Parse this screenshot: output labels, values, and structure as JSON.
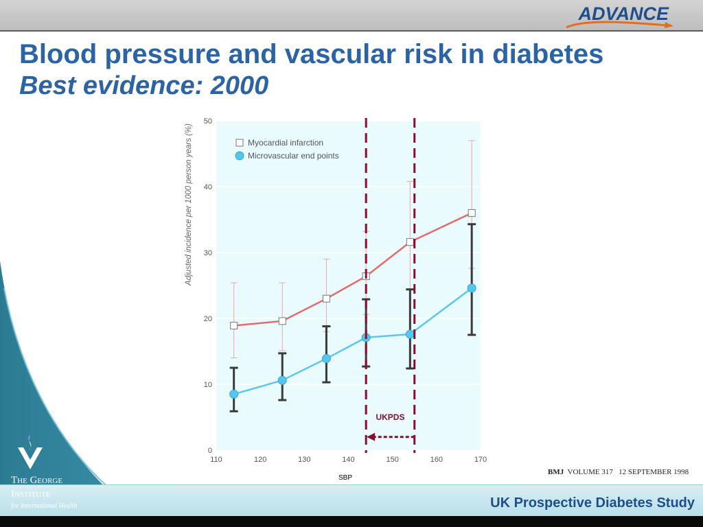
{
  "header": {
    "logo_text": "ADVANCE",
    "title": "Blood pressure and vascular risk in diabetes",
    "subtitle": "Best evidence: 2000"
  },
  "footer": {
    "text": "UK Prospective Diabetes Study",
    "institute_line1": "The George",
    "institute_line2": "Institute",
    "institute_line3": "for International Health"
  },
  "citation": {
    "journal": "BMJ",
    "volume": "VOLUME 317",
    "date": "12 SEPTEMBER 1998"
  },
  "colors": {
    "title_blue": "#2b64a4",
    "mi_line": "#e8686a",
    "micro_line": "#5ac8ee",
    "micro_fill": "#55c6ee",
    "error_dark": "#3a3a3a",
    "plot_bg": "#e9fbfd",
    "ukpds_marker": "#8b0d2e"
  },
  "chart_data": {
    "type": "line",
    "ylabel": "Adjusted incidence per 1000 person years (%)",
    "xlabel": "SBP",
    "xlim": [
      110,
      170
    ],
    "ylim": [
      0,
      50
    ],
    "x_ticks": [
      "110",
      "120",
      "130",
      "140",
      "150",
      "160",
      "170"
    ],
    "y_ticks": [
      "0",
      "10",
      "20",
      "30",
      "40",
      "50"
    ],
    "grid": "horizontal",
    "legend_position": "top-left",
    "series": [
      {
        "name": "Myocardial infarction",
        "marker": "open-square",
        "points": [
          {
            "x": 114,
            "y": 18.9,
            "lo": 14.0,
            "hi": 25.4
          },
          {
            "x": 125,
            "y": 19.6,
            "lo": 15.1,
            "hi": 25.4
          },
          {
            "x": 135,
            "y": 23.0,
            "lo": 18.0,
            "hi": 29.0
          },
          {
            "x": 144,
            "y": 26.4,
            "lo": 20.6,
            "hi": 33.2
          },
          {
            "x": 154,
            "y": 31.6,
            "lo": 24.5,
            "hi": 40.8
          },
          {
            "x": 168,
            "y": 36.0,
            "lo": 27.6,
            "hi": 47.0
          }
        ]
      },
      {
        "name": "Microvascular end points",
        "marker": "filled-circle",
        "points": [
          {
            "x": 114,
            "y": 8.5,
            "lo": 5.9,
            "hi": 12.5
          },
          {
            "x": 125,
            "y": 10.6,
            "lo": 7.6,
            "hi": 14.7
          },
          {
            "x": 135,
            "y": 13.9,
            "lo": 10.3,
            "hi": 18.8
          },
          {
            "x": 144,
            "y": 17.1,
            "lo": 12.7,
            "hi": 22.9
          },
          {
            "x": 154,
            "y": 17.6,
            "lo": 12.4,
            "hi": 24.4
          },
          {
            "x": 168,
            "y": 24.6,
            "lo": 17.5,
            "hi": 34.3
          }
        ]
      }
    ],
    "annotations": [
      {
        "label": "UKPDS",
        "x_from": 155,
        "x_to": 144,
        "arrow_y": 2,
        "label_y": 4.6
      }
    ],
    "reference_lines_x": [
      144,
      155
    ]
  }
}
